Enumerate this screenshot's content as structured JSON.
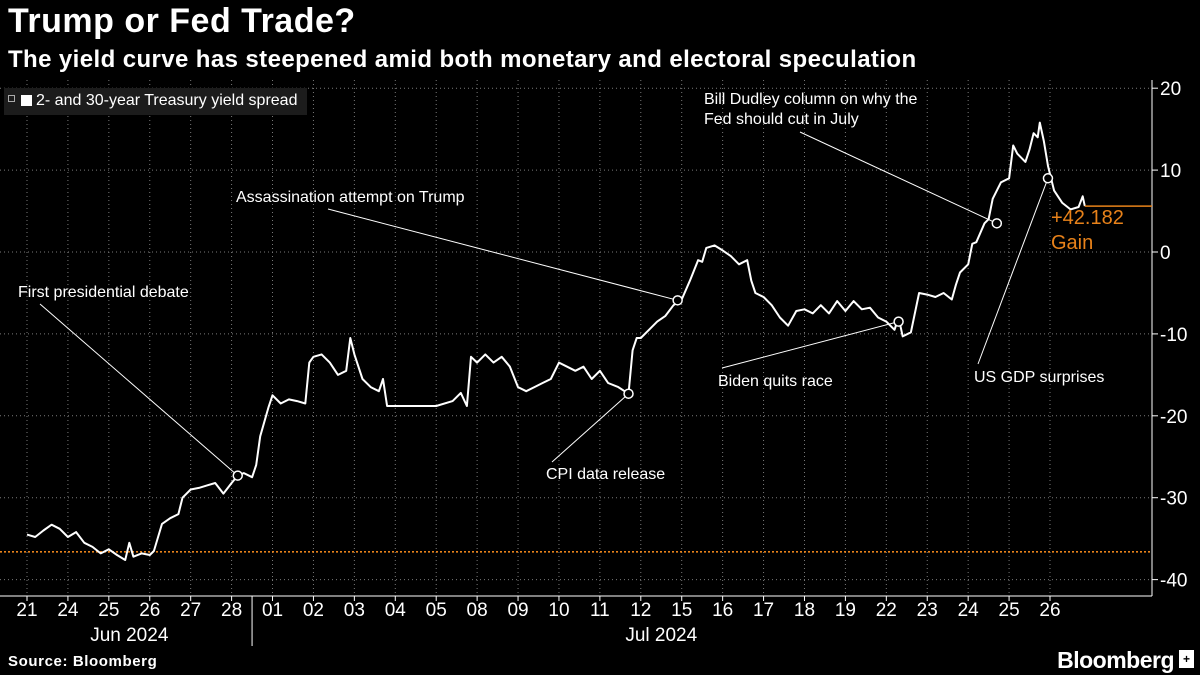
{
  "header": {
    "title": "Trump or Fed Trade?",
    "subtitle": "The yield curve has steepened amid both monetary and electoral speculation"
  },
  "legend": {
    "label": "2- and 30-year Treasury yield spread"
  },
  "footer": {
    "source": "Source: Bloomberg",
    "brand": "Bloomberg",
    "brand_icon": "plus-icon"
  },
  "colors": {
    "background": "#000000",
    "line": "#ffffff",
    "accent": "#e8821a",
    "grid": "#7a7a7a"
  },
  "chart_data": {
    "type": "line",
    "title": "Trump or Fed Trade?",
    "ylabel": "",
    "ylim": [
      -42,
      21
    ],
    "yticks": [
      20,
      10,
      0,
      -10,
      -20,
      -30,
      -40
    ],
    "ytick_labels": [
      "20",
      "10",
      "0",
      "-10",
      "-20",
      "-30",
      "-40"
    ],
    "x_ticks": [
      "21",
      "24",
      "25",
      "26",
      "27",
      "28",
      "01",
      "02",
      "03",
      "04",
      "05",
      "08",
      "09",
      "10",
      "11",
      "12",
      "15",
      "16",
      "17",
      "18",
      "19",
      "22",
      "23",
      "24",
      "25",
      "26"
    ],
    "x_groups": [
      {
        "label": "Jun 2024",
        "from": 0,
        "to": 5
      },
      {
        "label": "Jul 2024",
        "from": 6,
        "to": 25
      }
    ],
    "x_range": [
      0,
      26
    ],
    "baseline": -36.6,
    "last_value_label": "+42.182",
    "last_value_sub": "Gain",
    "last_value": 5.6,
    "series": [
      {
        "name": "2- and 30-year Treasury yield spread",
        "points": [
          [
            0,
            -34.5
          ],
          [
            0.2,
            -34.8
          ],
          [
            0.4,
            -34
          ],
          [
            0.6,
            -33.3
          ],
          [
            0.8,
            -33.8
          ],
          [
            1.0,
            -34.8
          ],
          [
            1.2,
            -34.2
          ],
          [
            1.4,
            -35.5
          ],
          [
            1.6,
            -36.0
          ],
          [
            1.8,
            -36.8
          ],
          [
            2.0,
            -36.3
          ],
          [
            2.2,
            -37.0
          ],
          [
            2.4,
            -37.6
          ],
          [
            2.5,
            -35.5
          ],
          [
            2.6,
            -37.2
          ],
          [
            2.8,
            -36.8
          ],
          [
            3.0,
            -37.0
          ],
          [
            3.1,
            -36.5
          ],
          [
            3.3,
            -33.2
          ],
          [
            3.5,
            -32.5
          ],
          [
            3.7,
            -32.0
          ],
          [
            3.8,
            -30.0
          ],
          [
            4.0,
            -29.0
          ],
          [
            4.2,
            -28.8
          ],
          [
            4.4,
            -28.5
          ],
          [
            4.6,
            -28.2
          ],
          [
            4.8,
            -29.5
          ],
          [
            5.0,
            -28.2
          ],
          [
            5.15,
            -27.3
          ],
          [
            5.3,
            -27.0
          ],
          [
            5.5,
            -27.5
          ],
          [
            5.6,
            -26.0
          ],
          [
            5.7,
            -22.5
          ],
          [
            5.9,
            -19.0
          ],
          [
            6.0,
            -17.5
          ],
          [
            6.2,
            -18.5
          ],
          [
            6.4,
            -18.0
          ],
          [
            6.6,
            -18.2
          ],
          [
            6.8,
            -18.5
          ],
          [
            6.9,
            -13.5
          ],
          [
            7.0,
            -12.8
          ],
          [
            7.2,
            -12.5
          ],
          [
            7.4,
            -13.5
          ],
          [
            7.6,
            -15.0
          ],
          [
            7.8,
            -14.5
          ],
          [
            7.9,
            -10.5
          ],
          [
            8.0,
            -12.5
          ],
          [
            8.2,
            -15.5
          ],
          [
            8.4,
            -16.5
          ],
          [
            8.6,
            -17.0
          ],
          [
            8.7,
            -15.5
          ],
          [
            8.8,
            -18.8
          ],
          [
            9.0,
            -18.8
          ],
          [
            9.5,
            -18.8
          ],
          [
            10.0,
            -18.8
          ],
          [
            10.4,
            -18.2
          ],
          [
            10.6,
            -17.2
          ],
          [
            10.75,
            -18.8
          ],
          [
            10.85,
            -12.8
          ],
          [
            11.0,
            -13.5
          ],
          [
            11.2,
            -12.5
          ],
          [
            11.4,
            -13.5
          ],
          [
            11.6,
            -12.8
          ],
          [
            11.8,
            -14.0
          ],
          [
            12.0,
            -16.5
          ],
          [
            12.2,
            -17.0
          ],
          [
            12.4,
            -16.5
          ],
          [
            12.6,
            -16.0
          ],
          [
            12.8,
            -15.5
          ],
          [
            13.0,
            -13.5
          ],
          [
            13.2,
            -14.0
          ],
          [
            13.4,
            -14.5
          ],
          [
            13.6,
            -14.0
          ],
          [
            13.8,
            -15.5
          ],
          [
            14.0,
            -14.5
          ],
          [
            14.2,
            -16.0
          ],
          [
            14.45,
            -16.5
          ],
          [
            14.7,
            -17.3
          ],
          [
            14.8,
            -12.0
          ],
          [
            14.9,
            -10.5
          ],
          [
            15.0,
            -10.5
          ],
          [
            15.2,
            -9.5
          ],
          [
            15.4,
            -8.5
          ],
          [
            15.6,
            -7.8
          ],
          [
            15.8,
            -6.5
          ],
          [
            16.0,
            -5.8
          ],
          [
            16.2,
            -3.5
          ],
          [
            16.4,
            -1.0
          ],
          [
            16.5,
            -1.2
          ],
          [
            16.6,
            0.5
          ],
          [
            16.8,
            0.8
          ],
          [
            17.0,
            0.2
          ],
          [
            17.2,
            -0.5
          ],
          [
            17.4,
            -1.5
          ],
          [
            17.6,
            -1.0
          ],
          [
            17.7,
            -3.5
          ],
          [
            17.8,
            -5.0
          ],
          [
            18.0,
            -5.5
          ],
          [
            18.2,
            -6.5
          ],
          [
            18.4,
            -8.0
          ],
          [
            18.6,
            -9.0
          ],
          [
            18.8,
            -7.2
          ],
          [
            19.0,
            -7.0
          ],
          [
            19.2,
            -7.5
          ],
          [
            19.4,
            -6.5
          ],
          [
            19.6,
            -7.5
          ],
          [
            19.8,
            -6.0
          ],
          [
            20.0,
            -7.2
          ],
          [
            20.2,
            -6.0
          ],
          [
            20.4,
            -7.0
          ],
          [
            20.6,
            -6.8
          ],
          [
            20.8,
            -8.0
          ],
          [
            21.0,
            -8.5
          ],
          [
            21.2,
            -9.5
          ],
          [
            21.3,
            -8.0
          ],
          [
            21.4,
            -10.3
          ],
          [
            21.6,
            -9.8
          ],
          [
            21.8,
            -5.0
          ],
          [
            22.0,
            -5.2
          ],
          [
            22.2,
            -5.5
          ],
          [
            22.4,
            -5.0
          ],
          [
            22.6,
            -5.8
          ],
          [
            22.7,
            -4.0
          ],
          [
            22.8,
            -2.5
          ],
          [
            23.0,
            -1.5
          ],
          [
            23.1,
            1.0
          ],
          [
            23.2,
            1.2
          ],
          [
            23.4,
            3.5
          ],
          [
            23.5,
            4.0
          ],
          [
            23.6,
            6.5
          ],
          [
            23.8,
            8.5
          ],
          [
            24.0,
            9.0
          ],
          [
            24.1,
            13.0
          ],
          [
            24.2,
            12.0
          ],
          [
            24.4,
            11.0
          ],
          [
            24.5,
            12.5
          ],
          [
            24.6,
            14.5
          ],
          [
            24.7,
            14.0
          ],
          [
            24.75,
            15.8
          ],
          [
            24.85,
            13.5
          ],
          [
            24.95,
            10.5
          ],
          [
            25.1,
            7.5
          ],
          [
            25.3,
            6.0
          ],
          [
            25.5,
            5.2
          ],
          [
            25.7,
            5.5
          ],
          [
            25.8,
            6.8
          ],
          [
            25.85,
            5.6
          ]
        ]
      }
    ],
    "annotations": [
      {
        "text": "First presidential debate",
        "x": 5.15,
        "y": -27.3
      },
      {
        "text": "Assassination attempt on Trump",
        "x": 15.9,
        "y": -5.9
      },
      {
        "text": "CPI data release",
        "x": 14.7,
        "y": -17.3
      },
      {
        "text": "Biden quits race",
        "x": 21.3,
        "y": -8.5
      },
      {
        "text": "Bill Dudley column on why the",
        "text2": "Fed should cut in July",
        "x": 23.7,
        "y": 3.5
      },
      {
        "text": "US GDP surprises",
        "x": 24.95,
        "y": 9.0
      }
    ]
  }
}
